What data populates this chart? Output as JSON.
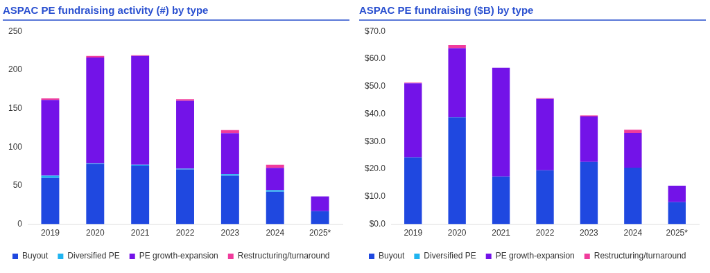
{
  "chart_data": [
    {
      "type": "bar",
      "title": "ASPAC PE fundraising activity (#) by type",
      "categories": [
        "2019",
        "2020",
        "2021",
        "2022",
        "2023",
        "2024",
        "2025*"
      ],
      "stacked": true,
      "series": [
        {
          "name": "Buyout",
          "color": "#1f48e0",
          "values": [
            60,
            78,
            76,
            71,
            63,
            42,
            17
          ]
        },
        {
          "name": "Diversified PE",
          "color": "#20b4f0",
          "values": [
            3,
            1,
            1,
            1,
            2,
            2,
            0
          ]
        },
        {
          "name": "PE growth-expansion",
          "color": "#7313e8",
          "values": [
            98,
            137,
            141,
            88,
            53,
            29,
            19
          ]
        },
        {
          "name": "Restructuring/turnaround",
          "color": "#f03c9c",
          "values": [
            2,
            2,
            1,
            2,
            4,
            4,
            0
          ]
        }
      ],
      "ylim": [
        0,
        250
      ],
      "yticks": [
        0,
        50,
        100,
        150,
        200,
        250
      ],
      "grid": false,
      "legend": "bottom"
    },
    {
      "type": "bar",
      "title": "ASPAC PE fundraising ($B) by type",
      "categories": [
        "2019",
        "2020",
        "2021",
        "2022",
        "2023",
        "2024",
        "2025*"
      ],
      "stacked": true,
      "series": [
        {
          "name": "Buyout",
          "color": "#1f48e0",
          "values": [
            24.2,
            38.8,
            17.3,
            19.6,
            22.6,
            20.5,
            8.0
          ]
        },
        {
          "name": "Diversified PE",
          "color": "#20b4f0",
          "values": [
            null,
            null,
            null,
            null,
            null,
            null,
            null
          ]
        },
        {
          "name": "PE growth-expansion",
          "color": "#7313e8",
          "values": [
            26.9,
            25.1,
            39.5,
            25.9,
            16.5,
            12.6,
            6.0
          ]
        },
        {
          "name": "Restructuring/turnaround",
          "color": "#f03c9c",
          "values": [
            0.3,
            1.1,
            null,
            0.2,
            0.4,
            1.2,
            0
          ]
        }
      ],
      "ylim": [
        0,
        70
      ],
      "yticks": [
        {
          "value": 0,
          "label": "$0.0"
        },
        {
          "value": 10,
          "label": "$10.0"
        },
        {
          "value": 20,
          "label": "$20.0"
        },
        {
          "value": 30,
          "label": "$30.0"
        },
        {
          "value": 40,
          "label": "$40.0"
        },
        {
          "value": 50,
          "label": "$50.0"
        },
        {
          "value": 60,
          "label": "$60.0"
        },
        {
          "value": 70,
          "label": "$70.0"
        }
      ],
      "grid": false,
      "legend": "bottom"
    }
  ]
}
